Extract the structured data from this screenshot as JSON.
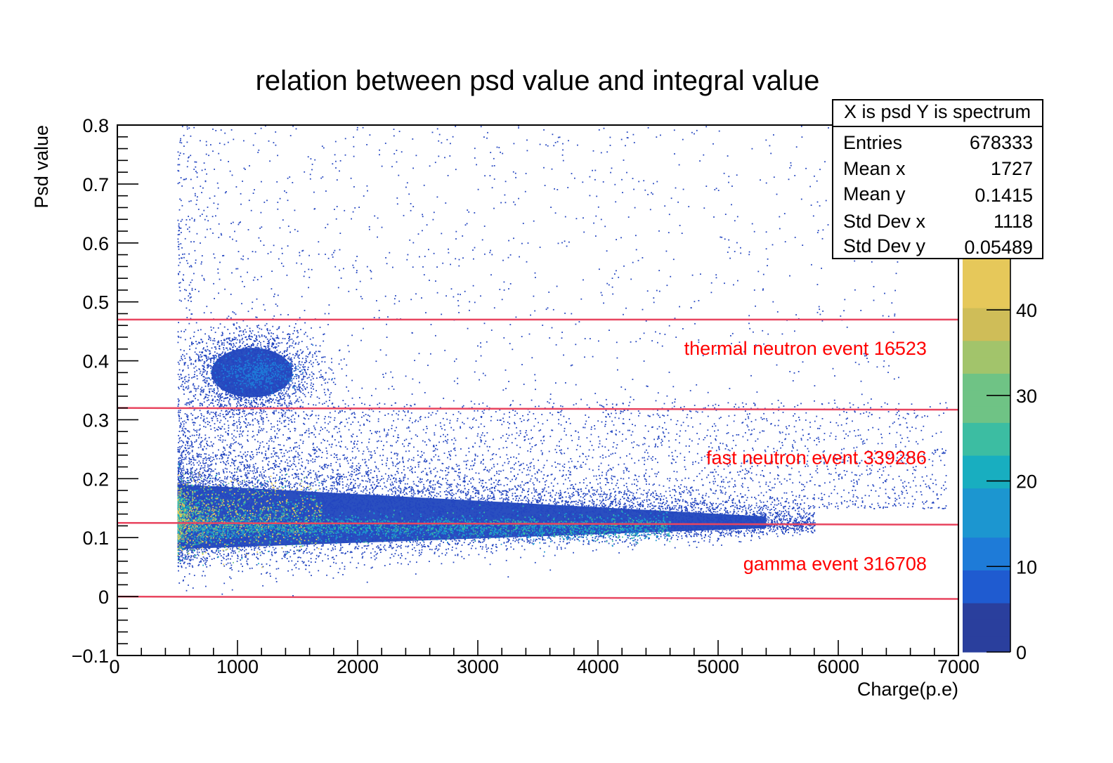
{
  "chart_data": {
    "type": "heatmap",
    "title": "relation between psd value and integral value",
    "xlabel": "Charge(p.e)",
    "ylabel": "Psd value",
    "xlim": [
      0,
      7000
    ],
    "ylim": [
      -0.1,
      0.8
    ],
    "x_ticks": [
      0,
      1000,
      2000,
      3000,
      4000,
      5000,
      6000,
      7000
    ],
    "x_tick_labels": [
      "0",
      "1000",
      "2000",
      "3000",
      "4000",
      "5000",
      "6000",
      "7000"
    ],
    "y_ticks": [
      -0.1,
      0,
      0.1,
      0.2,
      0.3,
      0.4,
      0.5,
      0.6,
      0.7,
      0.8
    ],
    "y_tick_labels": [
      "−0.1",
      "0",
      "0.1",
      "0.2",
      "0.3",
      "0.4",
      "0.5",
      "0.6",
      "0.7",
      "0.8"
    ],
    "colorbar": {
      "range": [
        0,
        46
      ],
      "ticks": [
        0,
        10,
        20,
        30,
        40
      ],
      "tick_labels": [
        "0",
        "10",
        "20",
        "30",
        "40"
      ],
      "colors": [
        "#2a3f9d",
        "#1f5bd0",
        "#1e7bd8",
        "#1c96d0",
        "#18aec0",
        "#3cbda2",
        "#6fc385",
        "#a2c46b",
        "#cfbd58",
        "#e6c85a"
      ]
    },
    "cut_lines": [
      {
        "x_range": [
          0,
          7000
        ],
        "y_start": 0.47,
        "y_end": 0.47
      },
      {
        "x_range": [
          0,
          7000
        ],
        "y_start": 0.32,
        "y_end": 0.317
      },
      {
        "x_range": [
          0,
          7000
        ],
        "y_start": 0.125,
        "y_end": 0.122
      },
      {
        "x_range": [
          0,
          7000
        ],
        "y_start": 0.0,
        "y_end": -0.004
      }
    ],
    "cut_line_color": "#e8455f",
    "annotations": [
      {
        "text": "thermal neutron event  16523",
        "x": 6900,
        "y": 0.41
      },
      {
        "text": "fast neutron event 339286",
        "x": 6900,
        "y": 0.225
      },
      {
        "text": "gamma event 316708",
        "x": 6900,
        "y": 0.045
      }
    ],
    "stats": {
      "name": "X is psd Y is spectrum",
      "rows": [
        {
          "label": "Entries",
          "value": "678333"
        },
        {
          "label": "Mean x",
          "value": "1727"
        },
        {
          "label": "Mean y",
          "value": "0.1415"
        },
        {
          "label": "Std Dev x",
          "value": "1118"
        },
        {
          "label": "Std Dev y",
          "value": "0.05489"
        }
      ]
    },
    "distribution": {
      "x_cut": 500,
      "bands": [
        {
          "name": "gamma",
          "x_range": [
            500,
            5400
          ],
          "y_center_start": 0.13,
          "y_center_end": 0.125,
          "sigma_start": 0.055,
          "sigma_end": 0.01
        },
        {
          "name": "thermal",
          "x_center": 1000,
          "x_sigma": 260,
          "y_center": 0.38,
          "y_sigma": 0.035
        }
      ]
    }
  }
}
